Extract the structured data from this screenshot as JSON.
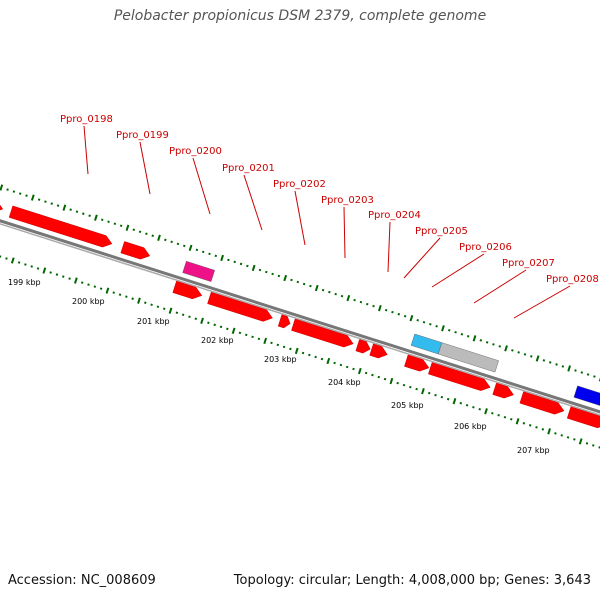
{
  "title": "Pelobacter propionicus DSM 2379, complete genome",
  "footer": {
    "accession_prefix": "Accession:",
    "accession": "NC_008609",
    "topology_prefix": "Topology:",
    "topology": "circular",
    "length_prefix": "Length:",
    "length": "4,008,000 bp",
    "genes_prefix": "Genes:",
    "genes": "3,643"
  },
  "colors": {
    "cds": "#ff0000",
    "label": "#cc0000",
    "pink_feature": "#ee1188",
    "cyan_feature": "#33bbee",
    "grey_feature": "#bbbbbb",
    "blue_feature": "#0000ee",
    "tick": "#006600",
    "backbone": "#777777"
  },
  "kbp_labels": [
    "199 kbp",
    "200 kbp",
    "201 kbp",
    "202 kbp",
    "203 kbp",
    "204 kbp",
    "205 kbp",
    "206 kbp",
    "207 kbp"
  ],
  "gene_labels": [
    "Ppro_0198",
    "Ppro_0199",
    "Ppro_0200",
    "Ppro_0201",
    "Ppro_0202",
    "Ppro_0203",
    "Ppro_0204",
    "Ppro_0205",
    "Ppro_0206",
    "Ppro_0207",
    "Ppro_0208"
  ],
  "features": [
    {
      "lane": "forward",
      "type": "cds",
      "start": 198.35,
      "end": 198.62
    },
    {
      "lane": "forward",
      "type": "cds",
      "start": 198.75,
      "end": 200.35
    },
    {
      "lane": "forward",
      "type": "cds",
      "start": 200.52,
      "end": 200.95
    },
    {
      "lane": "forward",
      "type": "pink_feature",
      "start": 201.5,
      "end": 201.95
    },
    {
      "lane": "forward",
      "type": "cyan_feature",
      "start": 205.12,
      "end": 205.55
    },
    {
      "lane": "forward",
      "type": "grey_feature",
      "start": 205.55,
      "end": 206.45
    },
    {
      "lane": "forward",
      "type": "blue_feature",
      "start": 207.7,
      "end": 208.2
    },
    {
      "lane": "reverse",
      "type": "cds",
      "start": 201.45,
      "end": 201.88
    },
    {
      "lane": "reverse",
      "type": "cds",
      "start": 202.0,
      "end": 203.0
    },
    {
      "lane": "reverse",
      "type": "cds",
      "start": 203.12,
      "end": 203.28
    },
    {
      "lane": "reverse",
      "type": "cds",
      "start": 203.33,
      "end": 204.28
    },
    {
      "lane": "reverse",
      "type": "cds",
      "start": 204.35,
      "end": 204.55
    },
    {
      "lane": "reverse",
      "type": "cds",
      "start": 204.57,
      "end": 204.82
    },
    {
      "lane": "reverse",
      "type": "cds",
      "start": 205.12,
      "end": 205.48
    },
    {
      "lane": "reverse",
      "type": "cds",
      "start": 205.5,
      "end": 206.45
    },
    {
      "lane": "reverse",
      "type": "cds",
      "start": 206.52,
      "end": 206.82
    },
    {
      "lane": "reverse",
      "type": "cds",
      "start": 206.95,
      "end": 207.62
    },
    {
      "lane": "reverse",
      "type": "cds",
      "start": 207.7,
      "end": 208.3
    }
  ]
}
